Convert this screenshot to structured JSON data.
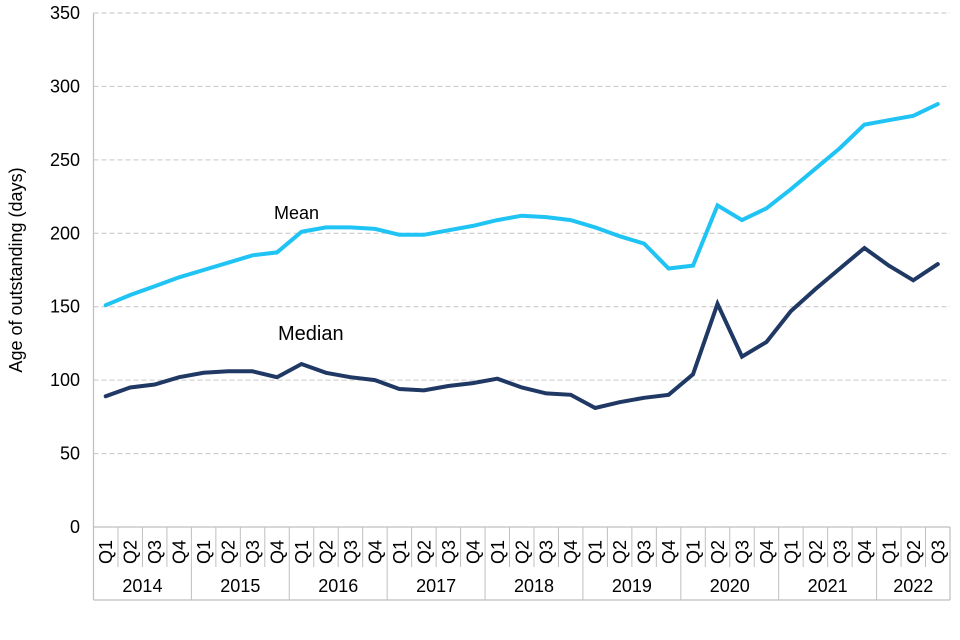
{
  "chart": {
    "background": "#ffffff",
    "grid_color": "#c6c6c6",
    "axis_color": "#bfbfbf",
    "text_color": "#000000"
  },
  "chart_data": {
    "type": "line",
    "title": "",
    "ylabel": "Age of outstanding (days)",
    "xlabel": "",
    "ylim": [
      0,
      350
    ],
    "ytick_step": 50,
    "grid": "horizontal-dashed",
    "legend_position": "inline-labels-on-plot",
    "categories": [
      {
        "year": "2014",
        "quarters": [
          "Q1",
          "Q2",
          "Q3",
          "Q4"
        ]
      },
      {
        "year": "2015",
        "quarters": [
          "Q1",
          "Q2",
          "Q3",
          "Q4"
        ]
      },
      {
        "year": "2016",
        "quarters": [
          "Q1",
          "Q2",
          "Q3",
          "Q4"
        ]
      },
      {
        "year": "2017",
        "quarters": [
          "Q1",
          "Q2",
          "Q3",
          "Q4"
        ]
      },
      {
        "year": "2018",
        "quarters": [
          "Q1",
          "Q2",
          "Q3",
          "Q4"
        ]
      },
      {
        "year": "2019",
        "quarters": [
          "Q1",
          "Q2",
          "Q3",
          "Q4"
        ]
      },
      {
        "year": "2020",
        "quarters": [
          "Q1",
          "Q2",
          "Q3",
          "Q4"
        ]
      },
      {
        "year": "2021",
        "quarters": [
          "Q1",
          "Q2",
          "Q3",
          "Q4"
        ]
      },
      {
        "year": "2022",
        "quarters": [
          "Q1",
          "Q2",
          "Q3"
        ]
      }
    ],
    "series": [
      {
        "name": "Mean",
        "color": "#1fc3f4",
        "values": [
          151,
          158,
          164,
          170,
          175,
          180,
          185,
          187,
          201,
          204,
          204,
          203,
          199,
          199,
          202,
          205,
          209,
          212,
          211,
          209,
          204,
          198,
          193,
          176,
          178,
          219,
          209,
          217,
          230,
          244,
          258,
          274,
          277,
          280,
          288
        ]
      },
      {
        "name": "Median",
        "color": "#1f3864",
        "values": [
          89,
          95,
          97,
          102,
          105,
          106,
          106,
          102,
          111,
          105,
          102,
          100,
          94,
          93,
          96,
          98,
          101,
          95,
          91,
          90,
          81,
          85,
          88,
          90,
          104,
          152,
          116,
          126,
          147,
          162,
          176,
          190,
          178,
          168,
          179
        ]
      }
    ],
    "series_label_annotations": [
      {
        "text": "Mean",
        "color": "#1fc3f4"
      },
      {
        "text": "Median",
        "color": "#000000"
      }
    ],
    "y_ticks": [
      0,
      50,
      100,
      150,
      200,
      250,
      300,
      350
    ]
  }
}
